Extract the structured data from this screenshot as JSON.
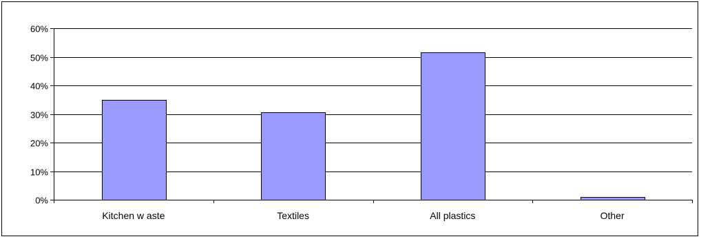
{
  "chart_data": {
    "type": "bar",
    "categories": [
      "Kitchen w aste",
      "Textiles",
      "All plastics",
      "Other"
    ],
    "values": [
      0.35,
      0.305,
      0.515,
      0.01
    ],
    "ylim": [
      0,
      0.6
    ],
    "yticks": [
      0,
      0.1,
      0.2,
      0.3,
      0.4,
      0.5,
      0.6
    ],
    "ytick_labels": [
      "0%",
      "10%",
      "20%",
      "30%",
      "40%",
      "50%",
      "60%"
    ],
    "grid": true,
    "legend": "none",
    "bar_color": "#9999FF",
    "bar_edge_color": "#000000"
  }
}
